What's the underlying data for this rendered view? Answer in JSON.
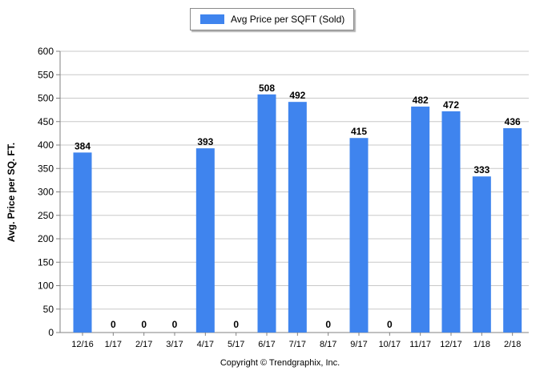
{
  "legend": {
    "label": "Avg Price per SQFT (Sold)"
  },
  "copyright": "Copyright © Trendgraphix, Inc.",
  "colors": {
    "bar": "#3f84ee",
    "grid": "#c8c8c8",
    "axis": "#808080"
  },
  "chart_data": {
    "type": "bar",
    "categories": [
      "12/16",
      "1/17",
      "2/17",
      "3/17",
      "4/17",
      "5/17",
      "6/17",
      "7/17",
      "8/17",
      "9/17",
      "10/17",
      "11/17",
      "12/17",
      "1/18",
      "2/18"
    ],
    "series": [
      {
        "name": "Avg Price per SQFT (Sold)",
        "values": [
          384,
          0,
          0,
          0,
          393,
          0,
          508,
          492,
          0,
          415,
          0,
          482,
          472,
          333,
          436
        ]
      }
    ],
    "xlabel": "",
    "ylabel": "Avg. Price per SQ. FT.",
    "ylim": [
      0,
      600
    ],
    "yticks": [
      0,
      50,
      100,
      150,
      200,
      250,
      300,
      350,
      400,
      450,
      500,
      550,
      600
    ],
    "grid": true,
    "legend_position": "top-center",
    "data_labels": true
  }
}
